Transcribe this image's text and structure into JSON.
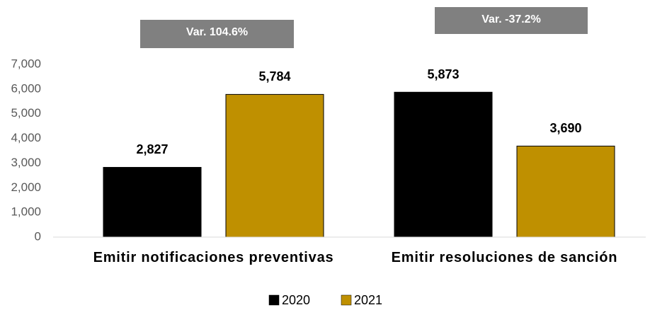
{
  "chart_data": {
    "type": "bar",
    "categories": [
      "Emitir notificaciones preventivas",
      "Emitir resoluciones de sanción"
    ],
    "series": [
      {
        "name": "2020",
        "color": "#000000",
        "values": [
          2827,
          5873
        ],
        "value_labels": [
          "2,827",
          "5,873"
        ]
      },
      {
        "name": "2021",
        "color": "#bf9000",
        "values": [
          5784,
          3690
        ],
        "value_labels": [
          "5,784",
          "3,690"
        ]
      }
    ],
    "annotations": [
      "Var. 104.6%",
      "Var. -37.2%"
    ],
    "ylim": [
      0,
      7000
    ],
    "yticks": [
      0,
      {
        "value": 1000,
        "label": "1,000"
      },
      {
        "value": 2000,
        "label": "2,000"
      },
      {
        "value": 3000,
        "label": "3,000"
      },
      {
        "value": 4000,
        "label": "4,000"
      },
      {
        "value": 5000,
        "label": "5,000"
      },
      {
        "value": 6000,
        "label": "6,000"
      },
      {
        "value": 7000,
        "label": "7,000"
      }
    ],
    "legend": "bottom"
  }
}
